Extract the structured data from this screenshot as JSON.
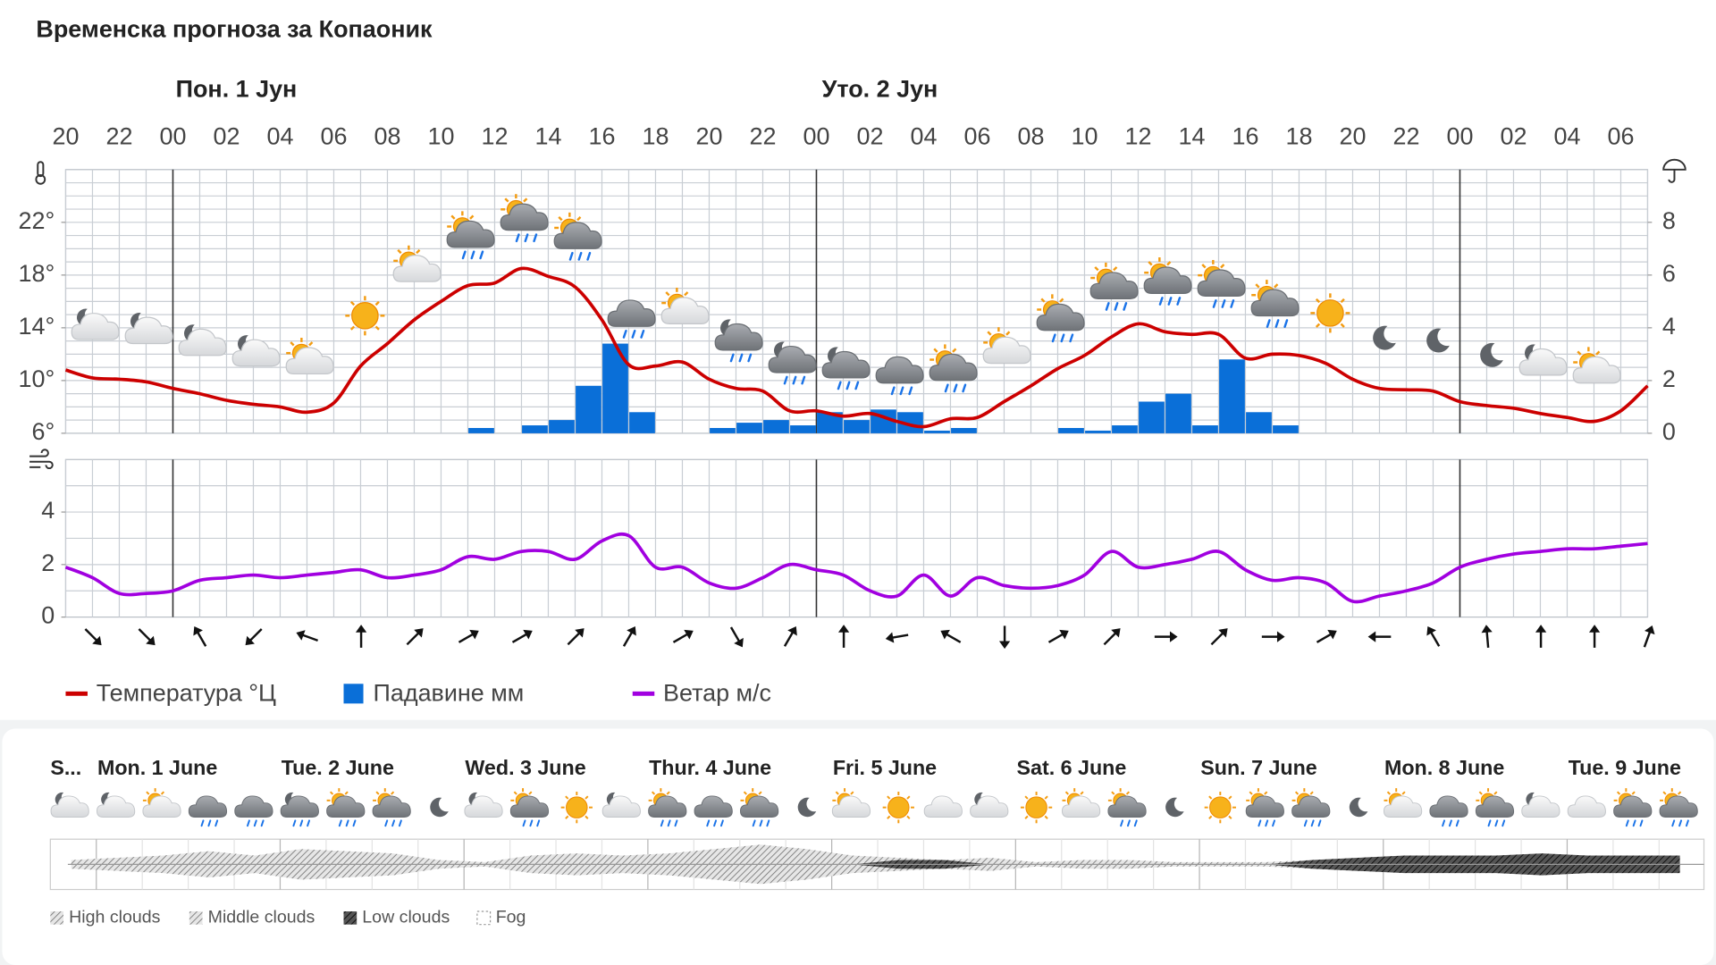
{
  "title": "Временска прогноза за Копаоник",
  "chart_data": [
    {
      "type": "line",
      "days": [
        "Пон. 1 Јун",
        "Уто. 2 Јун"
      ],
      "hour_labels": [
        "20",
        "22",
        "00",
        "02",
        "04",
        "06",
        "08",
        "10",
        "12",
        "14",
        "16",
        "18",
        "20",
        "22",
        "00",
        "02",
        "04",
        "06",
        "08",
        "10",
        "12",
        "14",
        "16",
        "18",
        "20",
        "22",
        "00",
        "02",
        "04",
        "06"
      ],
      "series": [
        {
          "name": "Температура °Ц",
          "color": "#cc0000",
          "values": [
            10.8,
            10.2,
            10.1,
            9.9,
            9.4,
            9.0,
            8.5,
            8.2,
            8.0,
            7.6,
            8.3,
            11.1,
            12.8,
            14.6,
            16.0,
            17.2,
            17.4,
            18.5,
            17.9,
            17.1,
            14.6,
            11.2,
            11.1,
            11.4,
            10.1,
            9.4,
            9.2,
            7.7,
            7.7,
            7.3,
            7.5,
            6.9,
            6.5,
            7.1,
            7.2,
            8.4,
            9.6,
            10.9,
            11.9,
            13.3,
            14.3,
            13.7,
            13.5,
            13.5,
            11.7,
            12.0,
            11.9,
            11.3,
            10.1,
            9.4,
            9.3,
            9.2,
            8.4,
            8.1,
            7.9,
            7.5,
            7.2,
            6.9,
            7.7,
            9.6
          ]
        },
        {
          "name": "Падавине мм",
          "color": "#0a6fd8",
          "axis": "y2",
          "type": "bar",
          "values": [
            0,
            0,
            0,
            0,
            0,
            0,
            0,
            0,
            0,
            0,
            0,
            0,
            0,
            0,
            0,
            0.2,
            0,
            0.3,
            0.5,
            1.8,
            3.4,
            0.8,
            0,
            0,
            0.2,
            0.4,
            0.5,
            0.3,
            0.8,
            0.5,
            0.9,
            0.8,
            0.1,
            0.2,
            0,
            0,
            0,
            0.2,
            0.1,
            0.3,
            1.2,
            1.5,
            0.3,
            2.8,
            0.8,
            0.3,
            0,
            0,
            0,
            0,
            0,
            0,
            0,
            0,
            0,
            0,
            0,
            0,
            0,
            0
          ]
        }
      ],
      "ylim": [
        6,
        26
      ],
      "yticks": [
        {
          "value": 6,
          "label": "6°"
        },
        {
          "value": 10,
          "label": "10°"
        },
        {
          "value": 14,
          "label": "14°"
        },
        {
          "value": 18,
          "label": "18°"
        },
        {
          "value": 22,
          "label": "22°"
        }
      ],
      "y2lim": [
        0,
        10
      ],
      "y2ticks": [
        0,
        2,
        4,
        6,
        8
      ],
      "grid": true
    },
    {
      "type": "line",
      "series": [
        {
          "name": "Ветар м/с",
          "color": "#a100e0",
          "values": [
            1.9,
            1.5,
            0.9,
            0.9,
            1.0,
            1.4,
            1.5,
            1.6,
            1.5,
            1.6,
            1.7,
            1.8,
            1.5,
            1.6,
            1.8,
            2.3,
            2.2,
            2.5,
            2.5,
            2.2,
            2.9,
            3.1,
            1.9,
            1.9,
            1.3,
            1.1,
            1.5,
            2.0,
            1.8,
            1.6,
            1.0,
            0.8,
            1.6,
            0.8,
            1.5,
            1.2,
            1.1,
            1.2,
            1.6,
            2.5,
            1.9,
            2.0,
            2.2,
            2.5,
            1.8,
            1.4,
            1.5,
            1.3,
            0.6,
            0.8,
            1.0,
            1.3,
            1.9,
            2.2,
            2.4,
            2.5,
            2.6,
            2.6,
            2.7,
            2.8
          ]
        }
      ],
      "direction": [
        135,
        135,
        330,
        225,
        290,
        0,
        45,
        60,
        60,
        45,
        30,
        60,
        150,
        30,
        0,
        260,
        300,
        180,
        60,
        45,
        90,
        45,
        90,
        60,
        270,
        330,
        355,
        0,
        0,
        20
      ],
      "ylim": [
        0,
        6
      ],
      "yticks": [
        0,
        2,
        4
      ],
      "grid": true
    }
  ],
  "overview": {
    "days": [
      "S...",
      "Mon. 1 June",
      "Tue. 2 June",
      "Wed. 3 June",
      "Thur. 4 June",
      "Fri. 5 June",
      "Sat. 6 June",
      "Sun. 7 June",
      "Mon. 8 June",
      "Tue. 9 June"
    ],
    "cloud_cover": [
      20,
      30,
      40,
      60,
      40,
      70,
      60,
      50,
      20,
      10,
      40,
      50,
      40,
      50,
      70,
      90,
      70,
      40,
      30,
      20,
      30,
      10,
      20,
      20,
      10,
      10,
      10,
      20,
      20,
      30,
      40,
      40,
      40,
      40,
      40,
      40
    ],
    "low_clouds": [
      0,
      0,
      0,
      0,
      0,
      0,
      0,
      0,
      0,
      0,
      0,
      0,
      0,
      0,
      0,
      0,
      0,
      0,
      20,
      20,
      0,
      0,
      0,
      0,
      0,
      0,
      0,
      20,
      30,
      40,
      40,
      40,
      50,
      40,
      40,
      40
    ],
    "legend": [
      "High clouds",
      "Middle clouds",
      "Low clouds",
      "Fog"
    ]
  }
}
